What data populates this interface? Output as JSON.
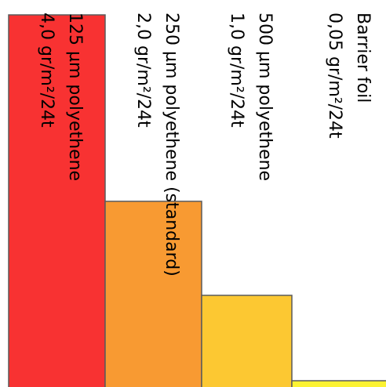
{
  "chart_data": {
    "type": "bar",
    "orientation": "horizontal-bars-rotated",
    "categories": [
      "125 µm polyethene",
      "250 µm polyethene (standard)",
      "500 µm polyethene",
      "Barrier foil"
    ],
    "value_labels": [
      "4,0  gr/m²/24t",
      "2,0  gr/m²/24t",
      "1,0  gr/m²/24t",
      "0,05 gr/m²/24t"
    ],
    "values": [
      4.0,
      2.0,
      1.0,
      0.05
    ],
    "unit": "gr/m²/24t",
    "colors": [
      "#f83232",
      "#f89a32",
      "#fcc832",
      "#fcf232"
    ],
    "grid": false,
    "legend": "none"
  }
}
